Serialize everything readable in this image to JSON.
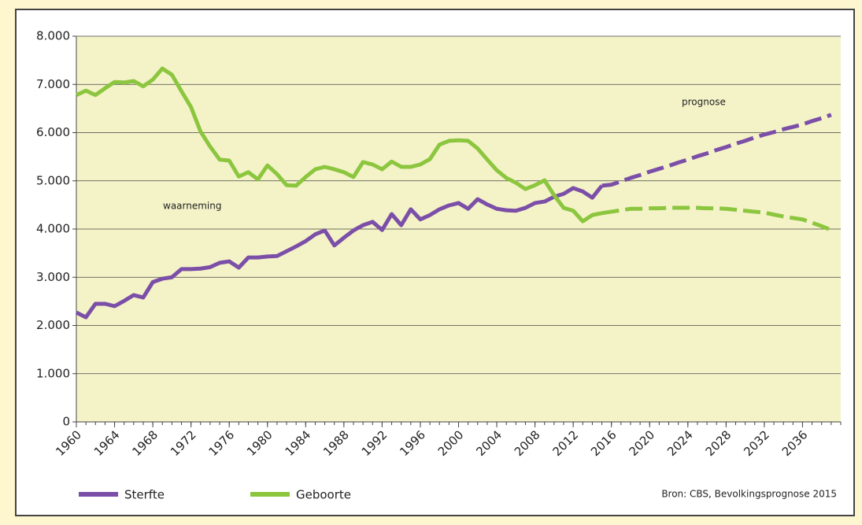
{
  "chart_data": {
    "type": "line",
    "annotations": [
      "waarneming",
      "prognose"
    ],
    "source": "Bron: CBS, Bevolkingsprognose 2015",
    "x": [
      1960,
      1961,
      1962,
      1963,
      1964,
      1965,
      1966,
      1967,
      1968,
      1969,
      1970,
      1971,
      1972,
      1973,
      1974,
      1975,
      1976,
      1977,
      1978,
      1979,
      1980,
      1981,
      1982,
      1983,
      1984,
      1985,
      1986,
      1987,
      1988,
      1989,
      1990,
      1991,
      1992,
      1993,
      1994,
      1995,
      1996,
      1997,
      1998,
      1999,
      2000,
      2001,
      2002,
      2003,
      2004,
      2005,
      2006,
      2007,
      2008,
      2009,
      2010,
      2011,
      2012,
      2013,
      2014,
      2015,
      2016,
      2017,
      2018,
      2019,
      2020,
      2021,
      2022,
      2023,
      2024,
      2025,
      2026,
      2027,
      2028,
      2029,
      2030,
      2031,
      2032,
      2033,
      2034,
      2035,
      2036,
      2037,
      2038,
      2039
    ],
    "dashed_from": 2015,
    "series": [
      {
        "name": "Sterfte",
        "color": "#7b4fa8",
        "values": [
          2270,
          2170,
          2450,
          2450,
          2400,
          2510,
          2630,
          2580,
          2900,
          2970,
          3000,
          3170,
          3170,
          3180,
          3210,
          3300,
          3330,
          3200,
          3410,
          3410,
          3430,
          3440,
          3540,
          3640,
          3750,
          3890,
          3970,
          3660,
          3820,
          3970,
          4080,
          4150,
          3980,
          4310,
          4080,
          4410,
          4200,
          4290,
          4410,
          4490,
          4540,
          4420,
          4620,
          4510,
          4420,
          4390,
          4380,
          4440,
          4540,
          4570,
          4670,
          4730,
          4850,
          4780,
          4650,
          4900,
          4920,
          4990,
          5060,
          5120,
          5190,
          5250,
          5310,
          5380,
          5440,
          5510,
          5570,
          5640,
          5700,
          5770,
          5830,
          5900,
          5960,
          6010,
          6070,
          6120,
          6170,
          6240,
          6300,
          6370
        ]
      },
      {
        "name": "Geboorte",
        "color": "#8cc63f",
        "values": [
          6780,
          6870,
          6780,
          6920,
          7050,
          7040,
          7070,
          6960,
          7100,
          7330,
          7200,
          6860,
          6530,
          6020,
          5710,
          5440,
          5420,
          5090,
          5180,
          5030,
          5320,
          5140,
          4910,
          4900,
          5080,
          5240,
          5290,
          5240,
          5180,
          5080,
          5390,
          5340,
          5240,
          5400,
          5290,
          5290,
          5340,
          5450,
          5750,
          5830,
          5840,
          5830,
          5670,
          5440,
          5220,
          5060,
          4960,
          4830,
          4910,
          5010,
          4700,
          4440,
          4380,
          4160,
          4290,
          4330,
          4360,
          4390,
          4420,
          4420,
          4430,
          4430,
          4440,
          4440,
          4440,
          4440,
          4430,
          4430,
          4420,
          4400,
          4380,
          4360,
          4340,
          4300,
          4260,
          4230,
          4200,
          4130,
          4060,
          3980
        ]
      }
    ],
    "xlim": [
      1960,
      2040
    ],
    "xticks": [
      1960,
      1964,
      1968,
      1972,
      1976,
      1980,
      1984,
      1988,
      1992,
      1996,
      2000,
      2004,
      2008,
      2012,
      2016,
      2020,
      2024,
      2028,
      2032,
      2036
    ],
    "ylim": [
      0,
      8000
    ],
    "yticks": [
      0,
      {
        "value": 1000,
        "label": "1.000"
      },
      {
        "value": 2000,
        "label": "2.000"
      },
      {
        "value": 3000,
        "label": "3.000"
      },
      {
        "value": 4000,
        "label": "4.000"
      },
      {
        "value": 5000,
        "label": "5.000"
      },
      {
        "value": 6000,
        "label": "6.000"
      },
      {
        "value": 7000,
        "label": "7.000"
      },
      {
        "value": 8000,
        "label": "8.000"
      }
    ],
    "grid": true
  }
}
